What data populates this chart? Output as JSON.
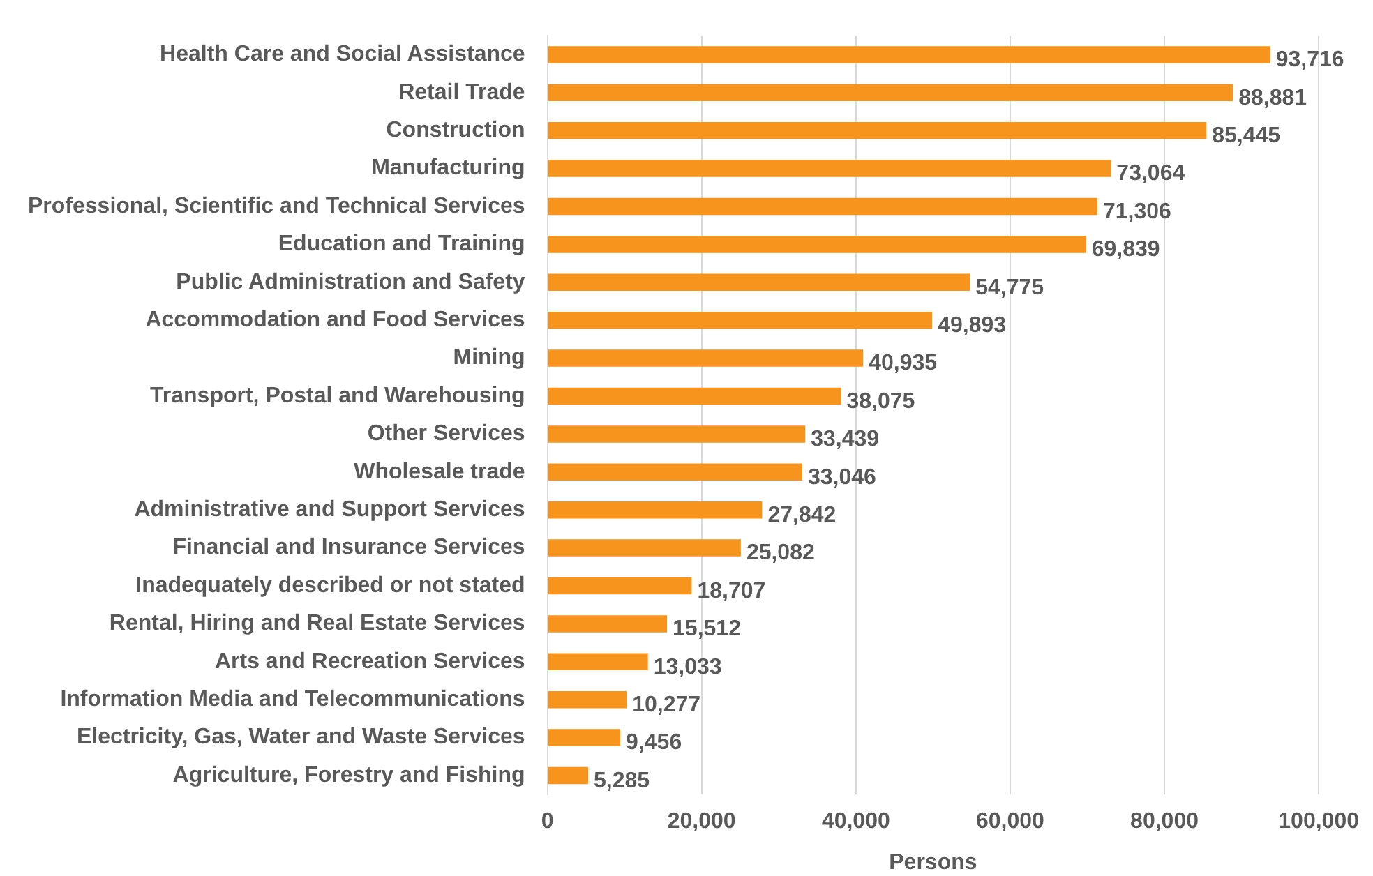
{
  "chart_data": {
    "type": "bar",
    "orientation": "horizontal",
    "xlabel": "Persons",
    "categories": [
      "Health Care and Social Assistance",
      "Retail Trade",
      "Construction",
      "Manufacturing",
      "Professional, Scientific and Technical Services",
      "Education and Training",
      "Public Administration and Safety",
      "Accommodation and Food Services",
      "Mining",
      "Transport, Postal and Warehousing",
      "Other Services",
      "Wholesale trade",
      "Administrative and Support Services",
      "Financial and Insurance Services",
      "Inadequately described or not stated",
      "Rental, Hiring and Real Estate Services",
      "Arts and Recreation Services",
      "Information Media and Telecommunications",
      "Electricity, Gas, Water and Waste Services",
      "Agriculture, Forestry and Fishing"
    ],
    "values": [
      93716,
      88881,
      85445,
      73064,
      71306,
      69839,
      54775,
      49893,
      40935,
      38075,
      33439,
      33046,
      27842,
      25082,
      18707,
      15512,
      13033,
      10277,
      9456,
      5285
    ],
    "value_labels": [
      "93,716",
      "88,881",
      "85,445",
      "73,064",
      "71,306",
      "69,839",
      "54,775",
      "49,893",
      "40,935",
      "38,075",
      "33,439",
      "33,046",
      "27,842",
      "25,082",
      "18,707",
      "15,512",
      "13,033",
      "10,277",
      "9,456",
      "5,285"
    ],
    "color": "#f7941d",
    "xlim": [
      0,
      100000
    ],
    "xticks": [
      {
        "value": 0,
        "label": "0"
      },
      {
        "value": 20000,
        "label": "20,000"
      },
      {
        "value": 40000,
        "label": "40,000"
      },
      {
        "value": 60000,
        "label": "60,000"
      },
      {
        "value": 80000,
        "label": "80,000"
      },
      {
        "value": 100000,
        "label": "100,000"
      }
    ],
    "grid": "x",
    "legend": false
  }
}
